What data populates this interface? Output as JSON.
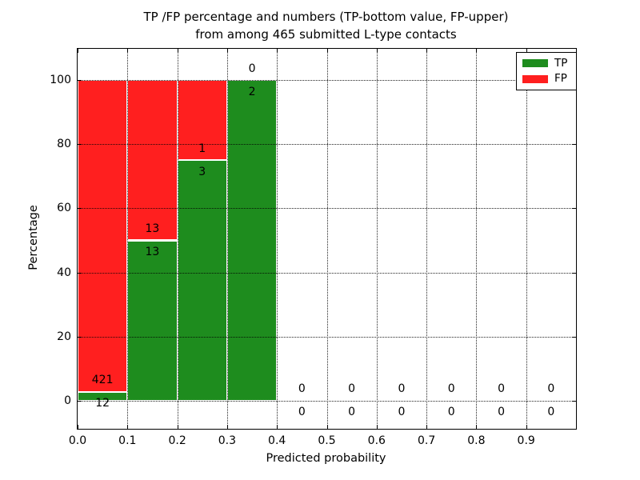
{
  "figure": {
    "title_line1": "TP /FP percentage and numbers (TP-bottom value, FP-upper)",
    "title_line2": "from among 465 submitted L-type contacts"
  },
  "chart_data": {
    "type": "bar",
    "stacked": true,
    "title": "TP /FP percentage and numbers (TP-bottom value, FP-upper)\nfrom among 465 submitted L-type contacts",
    "xlabel": "Predicted probability",
    "ylabel": "Percentage",
    "xlim": [
      0.0,
      1.0
    ],
    "ylim": [
      -8.8,
      109.8
    ],
    "xticks": [
      {
        "v": 0.0,
        "label": "0.0"
      },
      {
        "v": 0.1,
        "label": "0.1"
      },
      {
        "v": 0.2,
        "label": "0.2"
      },
      {
        "v": 0.3,
        "label": "0.3"
      },
      {
        "v": 0.4,
        "label": "0.4"
      },
      {
        "v": 0.5,
        "label": "0.5"
      },
      {
        "v": 0.6,
        "label": "0.6"
      },
      {
        "v": 0.7,
        "label": "0.7"
      },
      {
        "v": 0.8,
        "label": "0.8"
      },
      {
        "v": 0.9,
        "label": "0.9"
      }
    ],
    "yticks": [
      {
        "v": 0,
        "label": "0"
      },
      {
        "v": 20,
        "label": "20"
      },
      {
        "v": 40,
        "label": "40"
      },
      {
        "v": 60,
        "label": "60"
      },
      {
        "v": 80,
        "label": "80"
      },
      {
        "v": 100,
        "label": "100"
      }
    ],
    "grid": true,
    "grid_style": "dotted",
    "legend_position": "upper-right",
    "series": [
      {
        "name": "TP",
        "color": "#1e8c1e"
      },
      {
        "name": "FP",
        "color": "#ff1f1f"
      }
    ],
    "bin_width": 0.1,
    "total_submitted": 465,
    "bins": [
      {
        "x0": 0.0,
        "tp_count": 12,
        "fp_count": 421,
        "tp_pct": 2.77,
        "fp_pct": 97.23
      },
      {
        "x0": 0.1,
        "tp_count": 13,
        "fp_count": 13,
        "tp_pct": 50.0,
        "fp_pct": 50.0
      },
      {
        "x0": 0.2,
        "tp_count": 3,
        "fp_count": 1,
        "tp_pct": 75.0,
        "fp_pct": 25.0
      },
      {
        "x0": 0.3,
        "tp_count": 2,
        "fp_count": 0,
        "tp_pct": 100.0,
        "fp_pct": 0.0
      },
      {
        "x0": 0.4,
        "tp_count": 0,
        "fp_count": 0,
        "tp_pct": 0.0,
        "fp_pct": 0.0
      },
      {
        "x0": 0.5,
        "tp_count": 0,
        "fp_count": 0,
        "tp_pct": 0.0,
        "fp_pct": 0.0
      },
      {
        "x0": 0.6,
        "tp_count": 0,
        "fp_count": 0,
        "tp_pct": 0.0,
        "fp_pct": 0.0
      },
      {
        "x0": 0.7,
        "tp_count": 0,
        "fp_count": 0,
        "tp_pct": 0.0,
        "fp_pct": 0.0
      },
      {
        "x0": 0.8,
        "tp_count": 0,
        "fp_count": 0,
        "tp_pct": 0.0,
        "fp_pct": 0.0
      },
      {
        "x0": 0.9,
        "tp_count": 0,
        "fp_count": 0,
        "tp_pct": 0.0,
        "fp_pct": 0.0
      }
    ]
  },
  "colors": {
    "tp_green": "#1e8c1e",
    "fp_red": "#ff1f1f",
    "bar_edge": "#ffffff",
    "axis": "#000000",
    "grid": "#000000",
    "background": "#ffffff"
  }
}
